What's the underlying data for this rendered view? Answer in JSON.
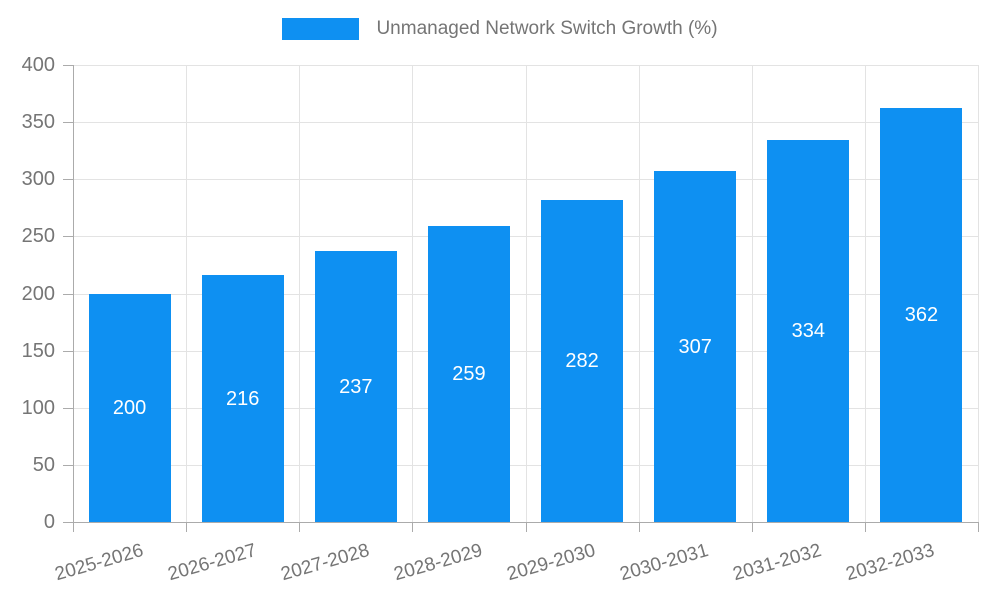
{
  "legend": {
    "label": "Unmanaged Network Switch Growth (%)"
  },
  "colors": {
    "bar": "#0E90F2",
    "grid": "#e3e3e3",
    "axis": "#ababab",
    "tick_label": "#757575",
    "bar_label": "#ffffff",
    "background": "#ffffff"
  },
  "chart_data": {
    "type": "bar",
    "title": "Unmanaged Network Switch Growth (%)",
    "categories": [
      "2025-2026",
      "2026-2027",
      "2027-2028",
      "2028-2029",
      "2029-2030",
      "2030-2031",
      "2031-2032",
      "2032-2033"
    ],
    "values": [
      200,
      216,
      237,
      259,
      282,
      307,
      334,
      362
    ],
    "bar_labels": [
      200,
      216,
      237,
      259,
      282,
      307,
      334,
      362
    ],
    "xlabel": "",
    "ylabel": "",
    "ylim": [
      0,
      400
    ],
    "ytick_step": 50,
    "ytick_labels": [
      "0",
      "50",
      "100",
      "150",
      "200",
      "250",
      "300",
      "350",
      "400"
    ],
    "grid": "on",
    "legend_position": "top",
    "xtick_rotation_deg": -16
  }
}
